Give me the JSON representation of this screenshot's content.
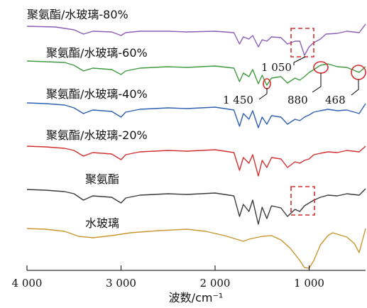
{
  "chart_data": {
    "type": "line",
    "title": "",
    "xlabel": "波数/cm⁻¹",
    "ylabel": "",
    "xlim": [
      4000,
      400
    ],
    "x_reversed": true,
    "grid": false,
    "x_ticks": [
      {
        "value": 4000,
        "label": "4 000"
      },
      {
        "value": 3000,
        "label": "3 000"
      },
      {
        "value": 2000,
        "label": "2 000"
      },
      {
        "value": 1000,
        "label": "1 000"
      }
    ],
    "series": [
      {
        "name": "聚氨酯/水玻璃-80%",
        "color": "#8a5fb8",
        "points": [
          [
            4000,
            37
          ],
          [
            3700,
            38
          ],
          [
            3500,
            42
          ],
          [
            3400,
            48
          ],
          [
            3300,
            44
          ],
          [
            3100,
            45
          ],
          [
            3000,
            50
          ],
          [
            2950,
            46
          ],
          [
            2800,
            44
          ],
          [
            2500,
            44
          ],
          [
            2300,
            45
          ],
          [
            2000,
            44
          ],
          [
            1800,
            46
          ],
          [
            1740,
            62
          ],
          [
            1700,
            52
          ],
          [
            1640,
            55
          ],
          [
            1600,
            50
          ],
          [
            1540,
            66
          ],
          [
            1500,
            56
          ],
          [
            1450,
            58
          ],
          [
            1400,
            52
          ],
          [
            1300,
            53
          ],
          [
            1230,
            62
          ],
          [
            1150,
            58
          ],
          [
            1100,
            58
          ],
          [
            1050,
            78
          ],
          [
            1000,
            66
          ],
          [
            950,
            60
          ],
          [
            880,
            55
          ],
          [
            820,
            48
          ],
          [
            700,
            47
          ],
          [
            600,
            44
          ],
          [
            468,
            46
          ],
          [
            400,
            34
          ]
        ]
      },
      {
        "name": "聚氨酯/水玻璃-60%",
        "color": "#3f9a3f",
        "points": [
          [
            4000,
            86
          ],
          [
            3800,
            87
          ],
          [
            3600,
            88
          ],
          [
            3500,
            92
          ],
          [
            3400,
            100
          ],
          [
            3300,
            96
          ],
          [
            3100,
            98
          ],
          [
            3000,
            105
          ],
          [
            2950,
            100
          ],
          [
            2800,
            96
          ],
          [
            2500,
            94
          ],
          [
            2300,
            95
          ],
          [
            2000,
            93
          ],
          [
            1800,
            96
          ],
          [
            1740,
            115
          ],
          [
            1700,
            103
          ],
          [
            1640,
            108
          ],
          [
            1600,
            98
          ],
          [
            1540,
            118
          ],
          [
            1500,
            106
          ],
          [
            1450,
            120
          ],
          [
            1400,
            110
          ],
          [
            1300,
            108
          ],
          [
            1230,
            117
          ],
          [
            1150,
            110
          ],
          [
            1100,
            113
          ],
          [
            1050,
            108
          ],
          [
            1000,
            102
          ],
          [
            950,
            98
          ],
          [
            880,
            92
          ],
          [
            800,
            90
          ],
          [
            700,
            94
          ],
          [
            600,
            95
          ],
          [
            468,
            102
          ],
          [
            400,
            94
          ]
        ]
      },
      {
        "name": "聚氨酯/水玻璃-40%",
        "color": "#2f5fb0",
        "points": [
          [
            4000,
            145
          ],
          [
            3800,
            146
          ],
          [
            3600,
            148
          ],
          [
            3500,
            152
          ],
          [
            3400,
            160
          ],
          [
            3300,
            155
          ],
          [
            3100,
            157
          ],
          [
            3000,
            165
          ],
          [
            2950,
            158
          ],
          [
            2800,
            154
          ],
          [
            2500,
            152
          ],
          [
            2300,
            153
          ],
          [
            2000,
            151
          ],
          [
            1800,
            155
          ],
          [
            1740,
            178
          ],
          [
            1700,
            160
          ],
          [
            1640,
            168
          ],
          [
            1600,
            156
          ],
          [
            1540,
            180
          ],
          [
            1500,
            165
          ],
          [
            1450,
            175
          ],
          [
            1400,
            163
          ],
          [
            1300,
            165
          ],
          [
            1230,
            175
          ],
          [
            1150,
            168
          ],
          [
            1100,
            170
          ],
          [
            1050,
            165
          ],
          [
            1000,
            162
          ],
          [
            950,
            158
          ],
          [
            880,
            156
          ],
          [
            800,
            154
          ],
          [
            700,
            156
          ],
          [
            600,
            155
          ],
          [
            468,
            160
          ],
          [
            400,
            146
          ]
        ]
      },
      {
        "name": "聚氨酯/水玻璃-20%",
        "color": "#d32f2f",
        "points": [
          [
            4000,
            206
          ],
          [
            3800,
            207
          ],
          [
            3600,
            209
          ],
          [
            3500,
            212
          ],
          [
            3400,
            220
          ],
          [
            3300,
            215
          ],
          [
            3100,
            217
          ],
          [
            3000,
            225
          ],
          [
            2950,
            218
          ],
          [
            2800,
            214
          ],
          [
            2500,
            212
          ],
          [
            2300,
            213
          ],
          [
            2000,
            211
          ],
          [
            1800,
            215
          ],
          [
            1740,
            240
          ],
          [
            1700,
            222
          ],
          [
            1640,
            230
          ],
          [
            1600,
            218
          ],
          [
            1540,
            248
          ],
          [
            1500,
            226
          ],
          [
            1450,
            236
          ],
          [
            1400,
            222
          ],
          [
            1300,
            224
          ],
          [
            1230,
            236
          ],
          [
            1150,
            228
          ],
          [
            1100,
            230
          ],
          [
            1050,
            226
          ],
          [
            1000,
            224
          ],
          [
            950,
            218
          ],
          [
            880,
            216
          ],
          [
            800,
            214
          ],
          [
            700,
            215
          ],
          [
            600,
            212
          ],
          [
            468,
            214
          ],
          [
            400,
            206
          ]
        ]
      },
      {
        "name": "聚氨酯",
        "color": "#3a3a3a",
        "points": [
          [
            4000,
            267
          ],
          [
            3800,
            268
          ],
          [
            3600,
            270
          ],
          [
            3500,
            273
          ],
          [
            3400,
            282
          ],
          [
            3300,
            276
          ],
          [
            3100,
            278
          ],
          [
            3000,
            286
          ],
          [
            2950,
            279
          ],
          [
            2800,
            275
          ],
          [
            2500,
            273
          ],
          [
            2300,
            274
          ],
          [
            2000,
            272
          ],
          [
            1800,
            276
          ],
          [
            1740,
            305
          ],
          [
            1700,
            288
          ],
          [
            1640,
            298
          ],
          [
            1600,
            282
          ],
          [
            1540,
            316
          ],
          [
            1500,
            292
          ],
          [
            1450,
            308
          ],
          [
            1400,
            290
          ],
          [
            1300,
            293
          ],
          [
            1230,
            305
          ],
          [
            1150,
            295
          ],
          [
            1100,
            298
          ],
          [
            1050,
            290
          ],
          [
            1000,
            286
          ],
          [
            950,
            282
          ],
          [
            880,
            278
          ],
          [
            800,
            275
          ],
          [
            700,
            276
          ],
          [
            600,
            273
          ],
          [
            468,
            275
          ],
          [
            400,
            266
          ]
        ]
      },
      {
        "name": "水玻璃",
        "color": "#c9962e",
        "points": [
          [
            4000,
            322
          ],
          [
            3800,
            323
          ],
          [
            3600,
            326
          ],
          [
            3450,
            333
          ],
          [
            3300,
            335
          ],
          [
            3100,
            332
          ],
          [
            2900,
            328
          ],
          [
            2600,
            325
          ],
          [
            2300,
            323
          ],
          [
            2100,
            326
          ],
          [
            1900,
            332
          ],
          [
            1700,
            340
          ],
          [
            1640,
            337
          ],
          [
            1500,
            333
          ],
          [
            1400,
            332
          ],
          [
            1300,
            338
          ],
          [
            1200,
            350
          ],
          [
            1100,
            367
          ],
          [
            1050,
            377
          ],
          [
            1000,
            378
          ],
          [
            950,
            367
          ],
          [
            880,
            345
          ],
          [
            800,
            332
          ],
          [
            750,
            328
          ],
          [
            700,
            330
          ],
          [
            600,
            334
          ],
          [
            520,
            343
          ],
          [
            468,
            356
          ],
          [
            400,
            322
          ]
        ]
      }
    ],
    "annotations": [
      {
        "text": "1 050",
        "color": "#d32f2f"
      },
      {
        "text": "1 450",
        "color": "#d32f2f"
      },
      {
        "text": "880",
        "color": "#d32f2f"
      },
      {
        "text": "468",
        "color": "#d32f2f"
      }
    ]
  }
}
